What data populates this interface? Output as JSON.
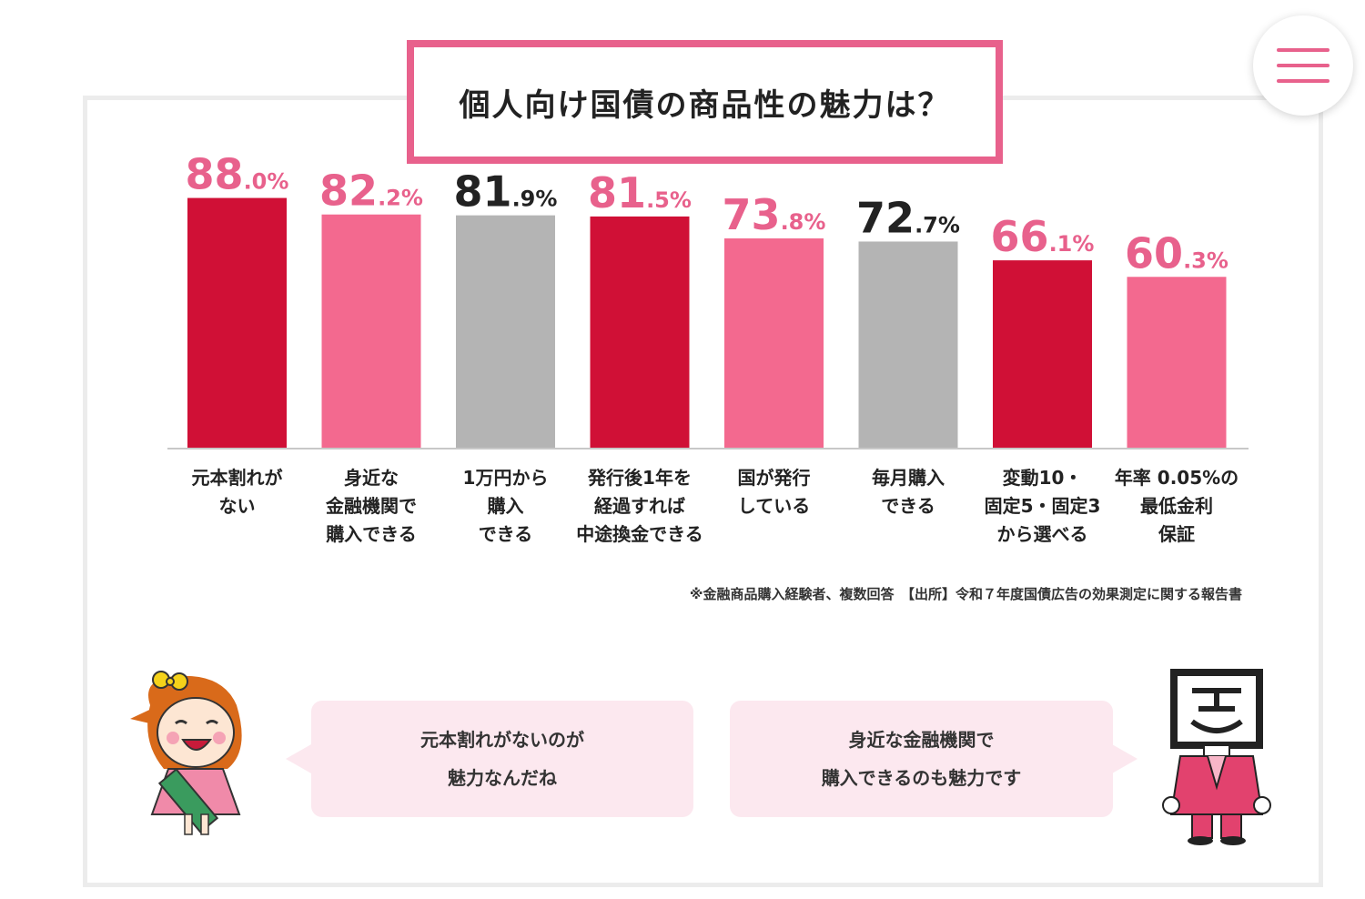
{
  "title": "個人向け国債の商品性の魅力は？",
  "colors": {
    "accent": "#e8618c",
    "crimson": "#d01036",
    "pink": "#f3698f",
    "gray": "#b4b4b4",
    "dark": "#222222"
  },
  "menu": {
    "icon": "hamburger-menu-icon"
  },
  "chart_data": {
    "type": "bar",
    "unit": "%",
    "ylim": [
      0,
      100
    ],
    "grid": false,
    "categories": [
      [
        "元本割れが",
        "ない"
      ],
      [
        "身近な",
        "金融機関で",
        "購入できる"
      ],
      [
        "1万円から",
        "購入",
        "できる"
      ],
      [
        "発行後1年を",
        "経過すれば",
        "中途換金できる"
      ],
      [
        "国が発行",
        "している"
      ],
      [
        "毎月購入",
        "できる"
      ],
      [
        "変動10・",
        "固定5・固定3",
        "から選べる"
      ],
      [
        "年率 0.05%の",
        "最低金利",
        "保証"
      ]
    ],
    "values": [
      88.0,
      82.2,
      81.9,
      81.5,
      73.8,
      72.7,
      66.1,
      60.3
    ],
    "value_labels": [
      {
        "int": "88",
        "dec": ".0%"
      },
      {
        "int": "82",
        "dec": ".2%"
      },
      {
        "int": "81",
        "dec": ".9%"
      },
      {
        "int": "81",
        "dec": ".5%"
      },
      {
        "int": "73",
        "dec": ".8%"
      },
      {
        "int": "72",
        "dec": ".7%"
      },
      {
        "int": "66",
        "dec": ".1%"
      },
      {
        "int": "60",
        "dec": ".3%"
      }
    ],
    "bar_colors": [
      "#d01036",
      "#f3698f",
      "#b4b4b4",
      "#d01036",
      "#f3698f",
      "#b4b4b4",
      "#d01036",
      "#f3698f"
    ],
    "label_colors": [
      "#e8618c",
      "#e8618c",
      "#222222",
      "#e8618c",
      "#e8618c",
      "#222222",
      "#e8618c",
      "#e8618c"
    ]
  },
  "footnote": "※金融商品購入経験者、複数回答　【出所】令和７年度国債広告の効果測定に関する報告書",
  "bubbles": {
    "left": {
      "line1": "元本割れがないのが",
      "line2": "魅力なんだね"
    },
    "right": {
      "line1": "身近な金融機関で",
      "line2": "購入できるのも魅力です"
    }
  },
  "characters": {
    "left": "girl-mascot-illustration",
    "right": "kokusai-mascot-illustration"
  }
}
